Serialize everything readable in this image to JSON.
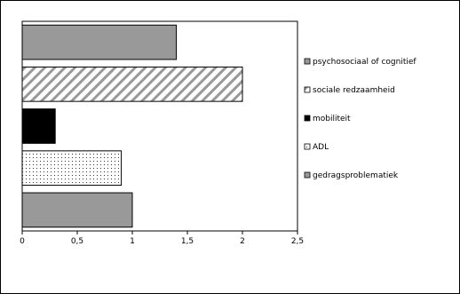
{
  "chart_data": {
    "type": "bar",
    "orientation": "horizontal",
    "categories": [
      "psychosociaal of cognitief",
      "sociale redzaamheid",
      "mobiliteit",
      "ADL",
      "gedragsproblematiek"
    ],
    "values": [
      1.4,
      2.0,
      0.3,
      0.9,
      1.0
    ],
    "xlim": [
      0,
      2.5
    ],
    "x_ticks": [
      "0",
      "0,5",
      "1",
      "1,5",
      "2",
      "2,5"
    ],
    "title": "",
    "xlabel": "",
    "ylabel": "",
    "grid": false,
    "legend": {
      "placement": "right",
      "entries": [
        "psychosociaal of cognitief",
        "sociale redzaamheid",
        "mobiliteit",
        "ADL",
        "gedragsproblematiek"
      ]
    },
    "styles": [
      {
        "fill": "#999999",
        "pattern": "solid"
      },
      {
        "fill": "#ffffff",
        "pattern": "diagonal-stripes"
      },
      {
        "fill": "#000000",
        "pattern": "solid"
      },
      {
        "fill": "#ffffff",
        "pattern": "dots"
      },
      {
        "fill": "#999999",
        "pattern": "solid"
      }
    ]
  }
}
